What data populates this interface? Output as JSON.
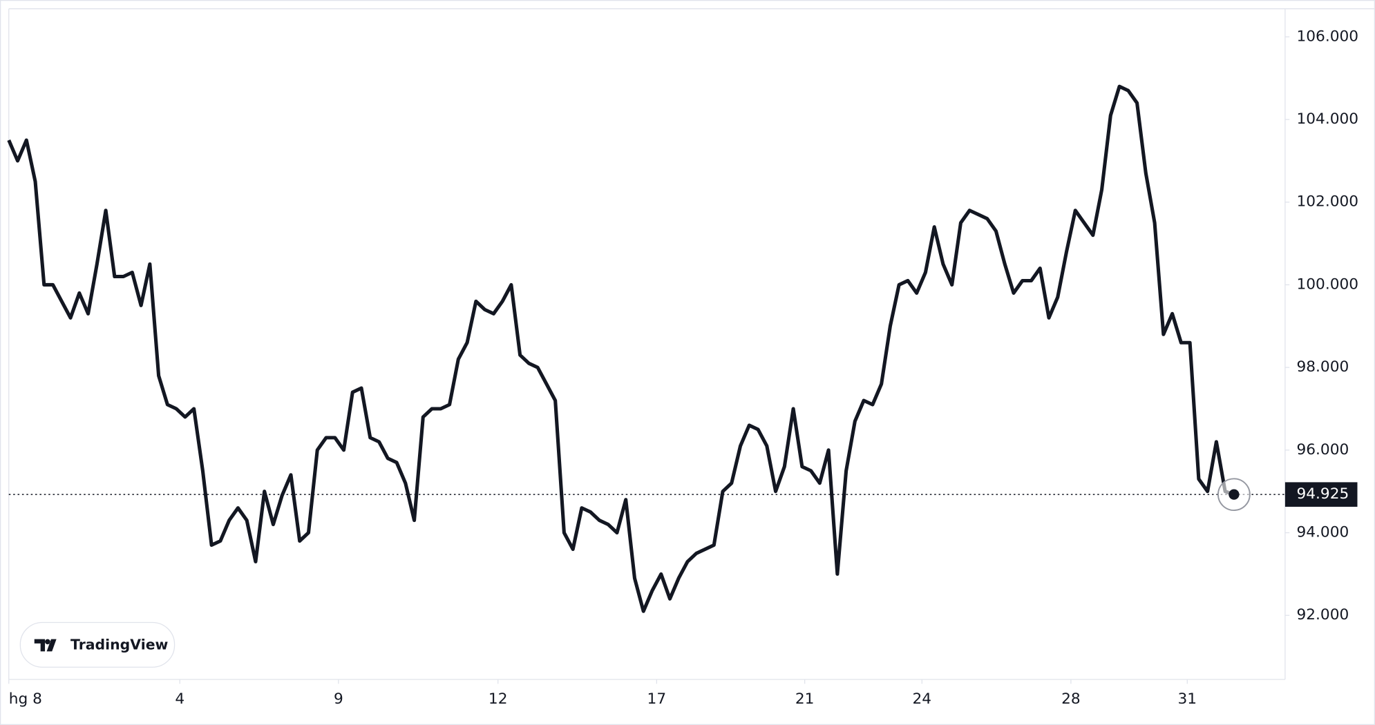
{
  "chart_data": {
    "type": "line",
    "watermark": "TradingView",
    "x": [
      0,
      1,
      2,
      3,
      4,
      5,
      6,
      7,
      8,
      9,
      10,
      11,
      12,
      13,
      14,
      15,
      16,
      17,
      18,
      19,
      20,
      21,
      22,
      23,
      24,
      25,
      26,
      27,
      28,
      29,
      30,
      31,
      32,
      33,
      34,
      35,
      36,
      37,
      38,
      39,
      40,
      41,
      42,
      43,
      44,
      45,
      46,
      47,
      48,
      49,
      50,
      51,
      52,
      53,
      54,
      55,
      56,
      57,
      58,
      59,
      60,
      61,
      62,
      63,
      64,
      65,
      66,
      67,
      68,
      69,
      70,
      71,
      72,
      73,
      74,
      75,
      76,
      77,
      78,
      79,
      80,
      81,
      82,
      83,
      84,
      85,
      86,
      87,
      88,
      89,
      90,
      91,
      92,
      93,
      94,
      95,
      96,
      97,
      98,
      99,
      100,
      101,
      102,
      103,
      104,
      105,
      106,
      107,
      108,
      109,
      110,
      111,
      112,
      113,
      114,
      115,
      116,
      117,
      118,
      119,
      120,
      121,
      122,
      123,
      124,
      125,
      126,
      127,
      128,
      129,
      130,
      131,
      132,
      133,
      134,
      135,
      136,
      137,
      138,
      139
    ],
    "series": [
      {
        "color": "#131722",
        "values": [
          103500,
          103000,
          103500,
          102500,
          100000,
          100000,
          99600,
          99200,
          99800,
          99300,
          100500,
          101800,
          100200,
          100200,
          100300,
          99500,
          100500,
          97800,
          97100,
          97000,
          96800,
          97000,
          95500,
          93700,
          93800,
          94300,
          94600,
          94300,
          93300,
          95000,
          94200,
          94900,
          95400,
          93800,
          94000,
          96000,
          96300,
          96300,
          96000,
          97400,
          97500,
          96300,
          96200,
          95800,
          95700,
          95200,
          94300,
          96800,
          97000,
          97000,
          97100,
          98200,
          98600,
          99600,
          99400,
          99300,
          99600,
          100000,
          98300,
          98100,
          98000,
          97600,
          97200,
          94000,
          93600,
          94600,
          94500,
          94300,
          94200,
          94000,
          94800,
          92900,
          92100,
          92600,
          93000,
          92400,
          92900,
          93300,
          93500,
          93600,
          93700,
          95000,
          95200,
          96100,
          96600,
          96500,
          96100,
          95000,
          95600,
          97000,
          95600,
          95500,
          95200,
          96000,
          93000,
          95500,
          96700,
          97200,
          97100,
          97600,
          99000,
          100000,
          100100,
          99800,
          100300,
          101400,
          100500,
          100000,
          101500,
          101800,
          101700,
          101600,
          101300,
          100500,
          99800,
          100100,
          100100,
          100400,
          99200,
          99700,
          100800,
          101800,
          101500,
          101200,
          102300,
          104100,
          104800,
          104700,
          104400,
          102700,
          101500,
          98800,
          99300,
          98600,
          98600,
          95300,
          95000,
          96200,
          95000,
          94925
        ]
      }
    ],
    "last_value_label": "94.925",
    "xlim": [
      0,
      144.8
    ],
    "xticks": [
      {
        "value": 0,
        "label": "hg 8"
      },
      {
        "value": 19.4,
        "label": "4"
      },
      {
        "value": 37.4,
        "label": "9"
      },
      {
        "value": 55.5,
        "label": "12"
      },
      {
        "value": 73.5,
        "label": "17"
      },
      {
        "value": 90.3,
        "label": "21"
      },
      {
        "value": 103.6,
        "label": "24"
      },
      {
        "value": 120.5,
        "label": "28"
      },
      {
        "value": 133.7,
        "label": "31"
      }
    ],
    "ylim": [
      90450,
      106680
    ],
    "yticks": [
      {
        "value": 92000,
        "label": "92.000"
      },
      {
        "value": 94000,
        "label": "94.000"
      },
      {
        "value": 96000,
        "label": "96.000"
      },
      {
        "value": 98000,
        "label": "98.000"
      },
      {
        "value": 100000,
        "label": "100.000"
      },
      {
        "value": 102000,
        "label": "102.000"
      },
      {
        "value": 104000,
        "label": "104.000"
      },
      {
        "value": 106000,
        "label": "106.000"
      }
    ]
  }
}
